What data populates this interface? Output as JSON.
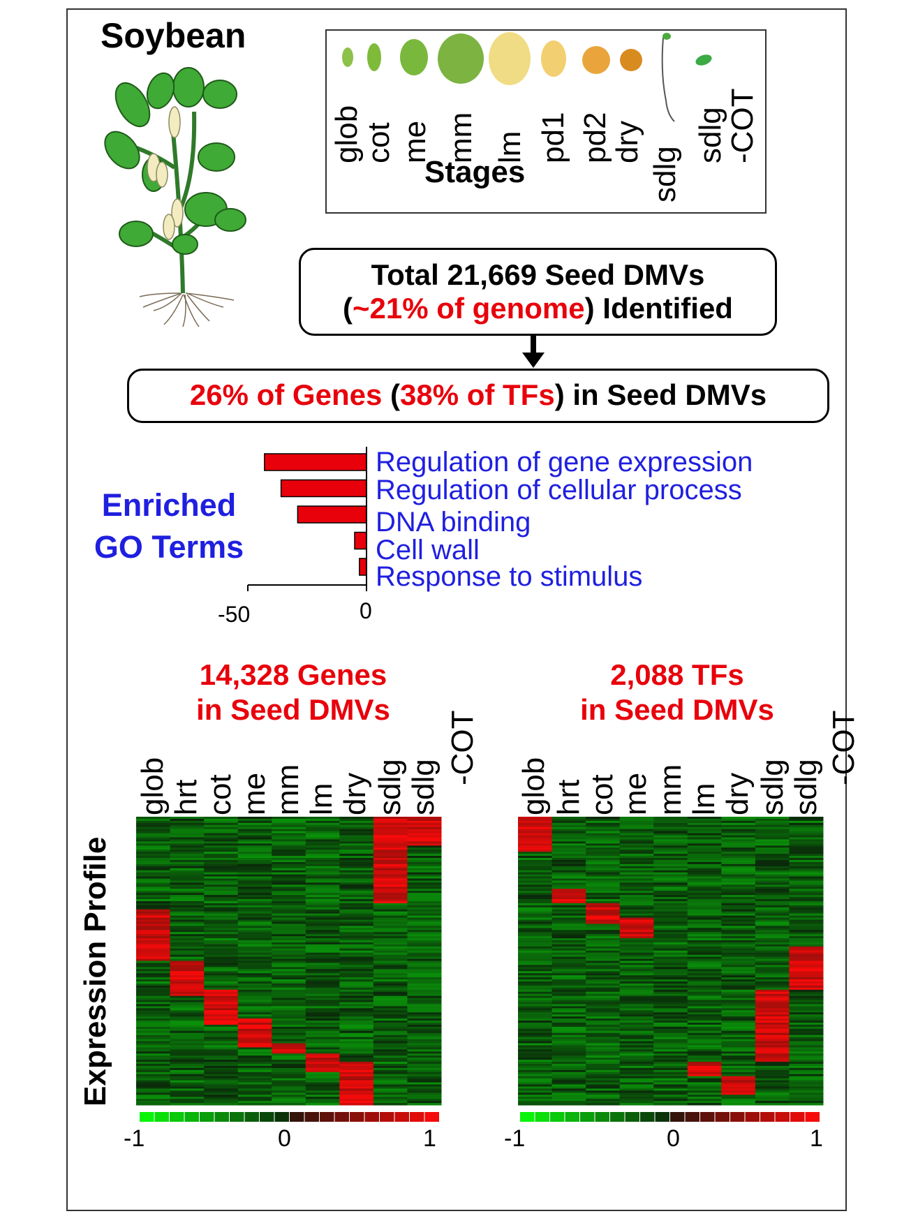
{
  "organism": "Soybean",
  "stages": {
    "title": "Stages",
    "labels": [
      "glob",
      "cot",
      "me",
      "mm",
      "lm",
      "pd1",
      "pd2\ndry",
      "sdlg",
      "sdlg\n-COT"
    ]
  },
  "total_box": {
    "line1": "Total 21,669 Seed DMVs",
    "line2_open": "(",
    "line2_red": "~21% of genome",
    "line2_close": ") Identified"
  },
  "genes_box": {
    "part1_red": "26% of Genes",
    "part2": " (",
    "part3_red": "38% of TFs",
    "part4": ") in Seed DMVs"
  },
  "go": {
    "title_line1": "Enriched",
    "title_line2": "GO Terms",
    "axis_ticks": [
      "-50",
      "0"
    ]
  },
  "heatmap_left": {
    "title_line1": "14,328 Genes",
    "title_line2": "in Seed DMVs",
    "columns": [
      "glob",
      "hrt",
      "cot",
      "me",
      "mm",
      "lm",
      "dry",
      "sdlg",
      "sdlg",
      "-COT"
    ]
  },
  "heatmap_right": {
    "title_line1": "2,088 TFs",
    "title_line2": "in Seed DMVs",
    "columns": [
      "glob",
      "hrt",
      "cot",
      "me",
      "mm",
      "lm",
      "dry",
      "sdlg",
      "sdlg",
      "-COT"
    ]
  },
  "ylabel": "Expression Profile",
  "colorbar": {
    "ticks": [
      "-1",
      "0",
      "1"
    ]
  },
  "colors": {
    "red": "#e8000b",
    "blue": "#1f1fe0",
    "green": "#00c000"
  },
  "chart_data": {
    "type": "bar",
    "orientation": "horizontal",
    "categories": [
      "Regulation of gene expression",
      "Regulation of cellular process",
      "DNA binding",
      "Cell wall",
      "Response to stimulus"
    ],
    "values": [
      -43,
      -36,
      -29,
      -5,
      -3
    ],
    "xlim": [
      -50,
      0
    ],
    "xticks": [
      -50,
      0
    ],
    "bar_color": "#e8000b"
  }
}
